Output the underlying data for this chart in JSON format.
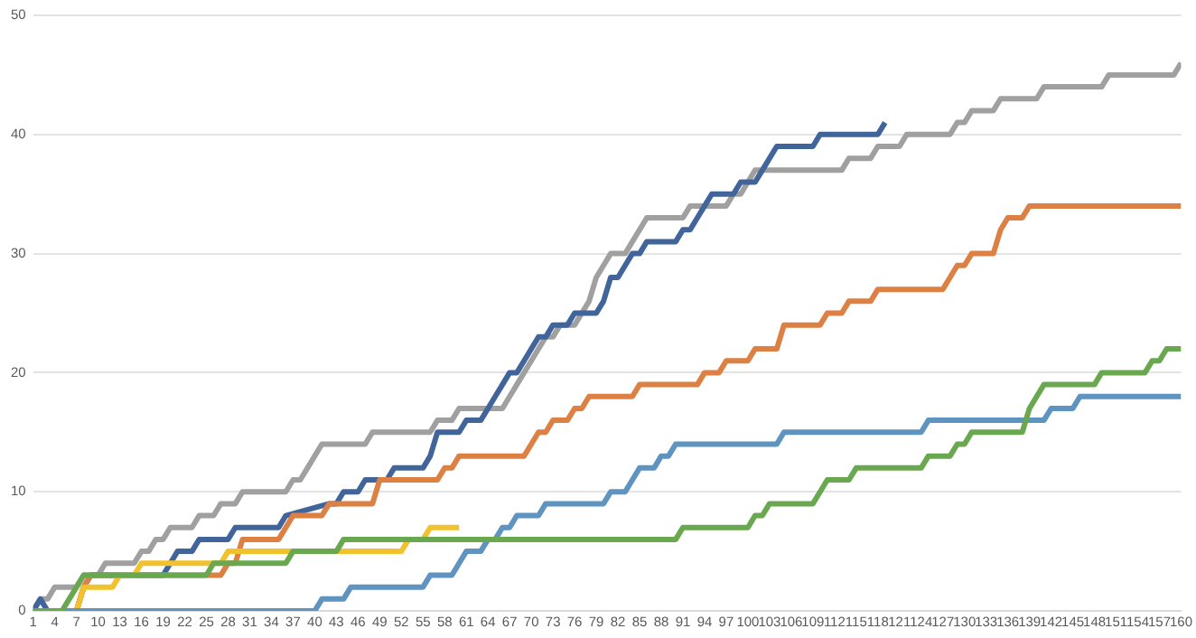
{
  "chart_data": {
    "type": "line",
    "xlim": [
      1,
      160
    ],
    "ylim": [
      0,
      50
    ],
    "yticks": [
      0,
      10,
      20,
      30,
      40,
      50
    ],
    "xticks": [
      1,
      4,
      7,
      10,
      13,
      16,
      19,
      22,
      25,
      28,
      31,
      34,
      37,
      40,
      43,
      46,
      49,
      52,
      55,
      58,
      61,
      64,
      67,
      70,
      73,
      76,
      79,
      82,
      85,
      88,
      91,
      94,
      97,
      100,
      103,
      106,
      109,
      112,
      115,
      118,
      121,
      124,
      127,
      130,
      133,
      136,
      139,
      142,
      145,
      148,
      151,
      154,
      157,
      160
    ],
    "grid": "y",
    "series": [
      {
        "color": "#6aa84f",
        "x": [
          1,
          5,
          6,
          7,
          8,
          25,
          26,
          36,
          37,
          43,
          44,
          90,
          91,
          100,
          101,
          102,
          103,
          109,
          110,
          111,
          114,
          115,
          124,
          125,
          128,
          129,
          130,
          131,
          138,
          139,
          140,
          141,
          148,
          149,
          155,
          156,
          157,
          158,
          160
        ],
        "values": [
          0,
          0,
          1,
          2,
          3,
          3,
          4,
          4,
          5,
          5,
          6,
          6,
          7,
          7,
          8,
          8,
          9,
          9,
          10,
          11,
          11,
          12,
          12,
          13,
          13,
          14,
          14,
          15,
          15,
          17,
          18,
          19,
          19,
          20,
          20,
          21,
          21,
          22,
          22
        ]
      },
      {
        "color": "#5f93c0",
        "x": [
          1,
          40,
          41,
          44,
          45,
          55,
          56,
          59,
          60,
          61,
          63,
          64,
          65,
          66,
          67,
          68,
          71,
          72,
          80,
          81,
          83,
          84,
          85,
          87,
          88,
          89,
          90,
          104,
          105,
          124,
          125,
          141,
          142,
          145,
          146,
          160
        ],
        "values": [
          0,
          0,
          1,
          1,
          2,
          2,
          3,
          3,
          4,
          5,
          5,
          6,
          6,
          7,
          7,
          8,
          8,
          9,
          9,
          10,
          10,
          11,
          12,
          12,
          13,
          13,
          14,
          14,
          15,
          15,
          16,
          16,
          17,
          17,
          18,
          18
        ]
      },
      {
        "color": "#f2c12e",
        "x": [
          7,
          8,
          12,
          13,
          15,
          16,
          27,
          28,
          52,
          53,
          55,
          56,
          60
        ],
        "values": [
          0,
          2,
          2,
          3,
          3,
          4,
          4,
          5,
          5,
          6,
          6,
          7,
          7
        ]
      },
      {
        "color": "#dc8044",
        "x": [
          1,
          7,
          8,
          9,
          27,
          28,
          29,
          30,
          35,
          36,
          37,
          41,
          42,
          48,
          49,
          57,
          58,
          59,
          60,
          69,
          70,
          71,
          72,
          73,
          75,
          76,
          77,
          78,
          84,
          85,
          93,
          94,
          96,
          97,
          100,
          101,
          104,
          105,
          110,
          111,
          113,
          114,
          117,
          118,
          127,
          128,
          129,
          130,
          131,
          134,
          135,
          136,
          138,
          139,
          160
        ],
        "values": [
          0,
          0,
          2,
          3,
          3,
          4,
          4,
          6,
          6,
          7,
          8,
          8,
          9,
          9,
          11,
          11,
          12,
          12,
          13,
          13,
          14,
          15,
          15,
          16,
          16,
          17,
          17,
          18,
          18,
          19,
          19,
          20,
          20,
          21,
          21,
          22,
          22,
          24,
          24,
          25,
          25,
          26,
          26,
          27,
          27,
          28,
          29,
          29,
          30,
          30,
          32,
          33,
          33,
          34,
          34
        ]
      },
      {
        "color": "#41659b",
        "x": [
          1,
          2,
          3,
          7,
          8,
          9,
          19,
          20,
          21,
          23,
          24,
          28,
          29,
          35,
          36,
          42,
          43,
          44,
          46,
          47,
          50,
          51,
          55,
          56,
          57,
          60,
          61,
          63,
          64,
          65,
          66,
          67,
          68,
          69,
          70,
          71,
          72,
          73,
          75,
          76,
          79,
          80,
          81,
          82,
          83,
          84,
          85,
          86,
          90,
          91,
          92,
          93,
          94,
          95,
          98,
          99,
          101,
          102,
          103,
          104,
          109,
          110,
          118,
          119
        ],
        "values": [
          0,
          1,
          0,
          0,
          2,
          3,
          3,
          4,
          5,
          5,
          6,
          6,
          7,
          7,
          8,
          9,
          9,
          10,
          10,
          11,
          11,
          12,
          12,
          13,
          15,
          15,
          16,
          16,
          17,
          18,
          19,
          20,
          20,
          21,
          22,
          23,
          23,
          24,
          24,
          25,
          25,
          26,
          28,
          28,
          29,
          30,
          30,
          31,
          31,
          32,
          32,
          33,
          34,
          35,
          35,
          36,
          36,
          37,
          38,
          39,
          39,
          40,
          40,
          41
        ]
      },
      {
        "color": "#a0a0a0",
        "x": [
          1,
          2,
          3,
          4,
          7,
          8,
          10,
          11,
          15,
          16,
          17,
          18,
          19,
          20,
          23,
          24,
          26,
          27,
          29,
          30,
          36,
          37,
          38,
          39,
          40,
          41,
          47,
          48,
          56,
          57,
          59,
          60,
          66,
          67,
          68,
          69,
          70,
          71,
          72,
          73,
          74,
          76,
          77,
          78,
          79,
          80,
          81,
          83,
          84,
          86,
          91,
          92,
          97,
          98,
          99,
          100,
          101,
          113,
          114,
          117,
          118,
          121,
          122,
          128,
          129,
          130,
          131,
          134,
          135,
          140,
          141,
          149,
          150,
          159,
          160
        ],
        "values": [
          0,
          1,
          1,
          2,
          2,
          3,
          3,
          4,
          4,
          5,
          5,
          6,
          6,
          7,
          7,
          8,
          8,
          9,
          9,
          10,
          10,
          11,
          11,
          12,
          13,
          14,
          14,
          15,
          15,
          16,
          16,
          17,
          17,
          18,
          19,
          20,
          21,
          22,
          23,
          23,
          24,
          24,
          25,
          26,
          28,
          29,
          30,
          30,
          31,
          33,
          33,
          34,
          34,
          35,
          35,
          36,
          37,
          37,
          38,
          38,
          39,
          39,
          40,
          40,
          41,
          41,
          42,
          42,
          43,
          43,
          44,
          44,
          45,
          45,
          46
        ]
      }
    ]
  }
}
